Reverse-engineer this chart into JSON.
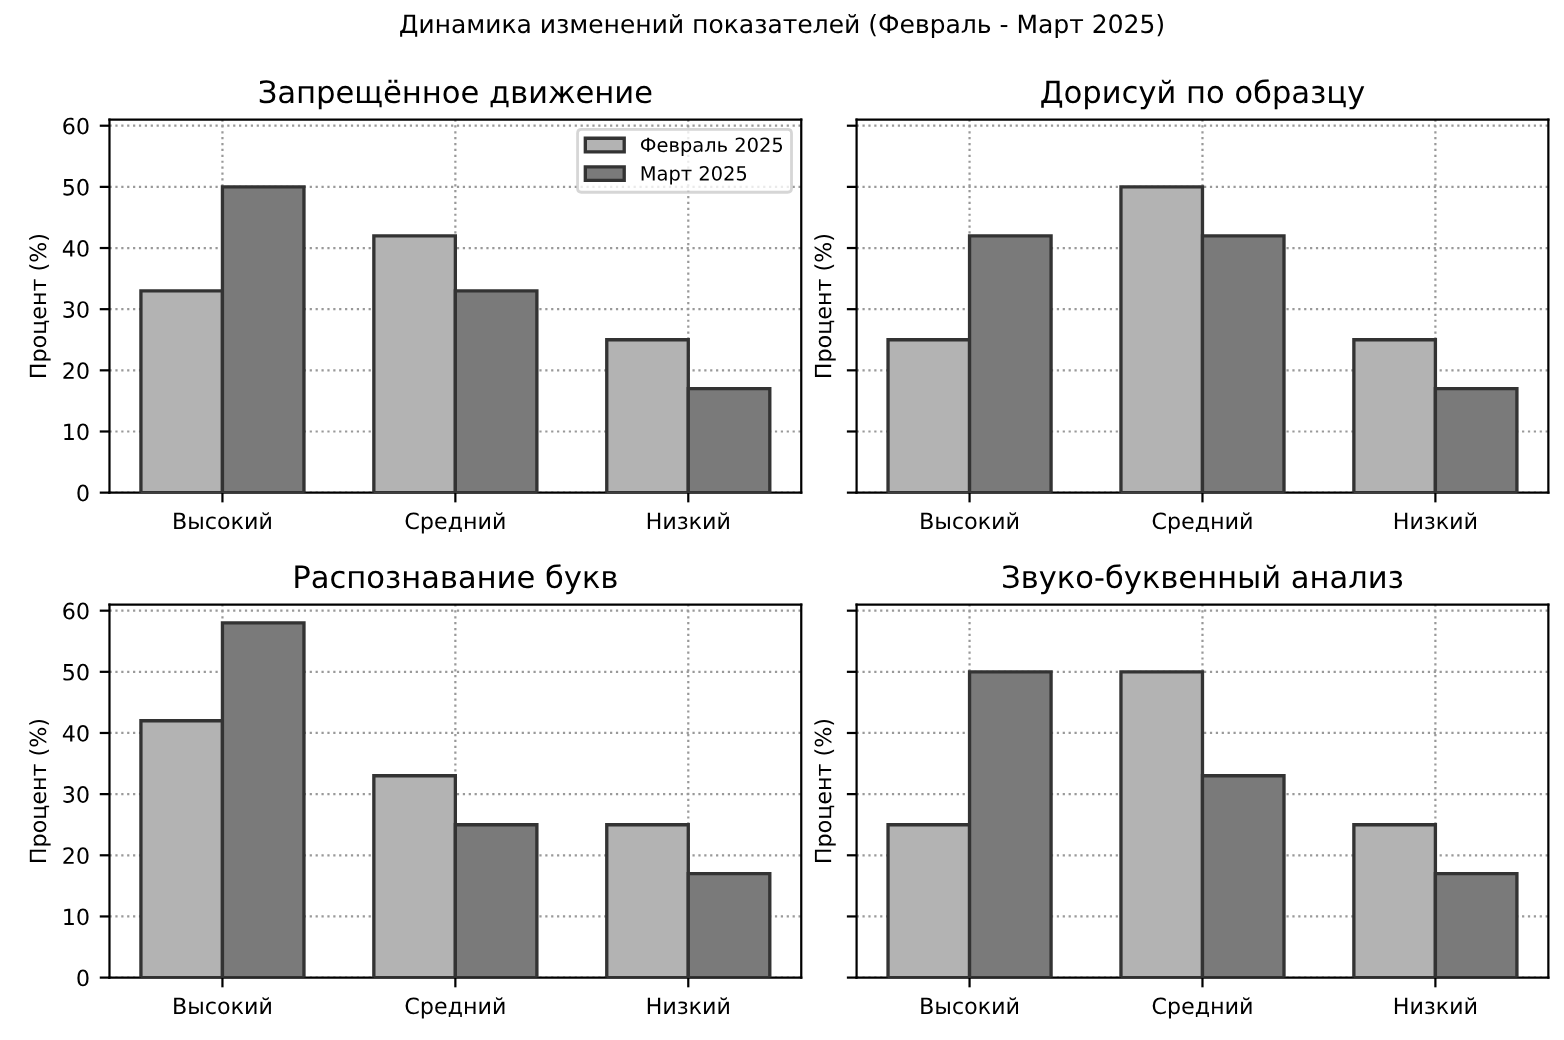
{
  "chart_data": [
    {
      "type": "bar",
      "title": "Запрещённое движение",
      "ylabel": "Процент (%)",
      "annotations": [
        "Динамика изменений показателей (Февраль - Март 2025)"
      ],
      "categories": [
        "Высокий",
        "Средний",
        "Низкий"
      ],
      "series": [
        {
          "name": "Февраль 2025",
          "color": "#b3b3b3",
          "values": [
            33,
            42,
            25
          ]
        },
        {
          "name": "Март 2025",
          "color": "#7a7a7a",
          "values": [
            50,
            33,
            17
          ]
        }
      ],
      "ylim": [
        0,
        61
      ],
      "yticks": [
        0,
        10,
        20,
        30,
        40,
        50,
        60
      ],
      "grid": true,
      "legend": "top right"
    },
    {
      "type": "bar",
      "title": "Дорисуй по образцу",
      "ylabel": "Процент (%)",
      "categories": [
        "Высокий",
        "Средний",
        "Низкий"
      ],
      "series": [
        {
          "color": "#b3b3b3",
          "values": [
            25,
            50,
            25
          ]
        },
        {
          "color": "#7a7a7a",
          "values": [
            42,
            42,
            17
          ]
        }
      ],
      "ylim": [
        0,
        61
      ],
      "yticks": [
        0,
        10,
        20,
        30,
        40,
        50,
        60
      ],
      "grid": true,
      "tick_labels": "x"
    },
    {
      "type": "bar",
      "title": "Распознавание букв",
      "ylabel": "Процент (%)",
      "categories": [
        "Высокий",
        "Средний",
        "Низкий"
      ],
      "series": [
        {
          "color": "#b3b3b3",
          "values": [
            42,
            33,
            25
          ]
        },
        {
          "color": "#7a7a7a",
          "values": [
            58,
            25,
            17
          ]
        }
      ],
      "ylim": [
        0,
        61
      ],
      "yticks": [
        0,
        10,
        20,
        30,
        40,
        50,
        60
      ],
      "grid": true
    },
    {
      "type": "bar",
      "title": "Звуко-буквенный анализ",
      "ylabel": "Процент (%)",
      "categories": [
        "Высокий",
        "Средний",
        "Низкий"
      ],
      "series": [
        {
          "color": "#b3b3b3",
          "values": [
            25,
            50,
            25
          ]
        },
        {
          "color": "#7a7a7a",
          "values": [
            50,
            33,
            17
          ]
        }
      ],
      "ylim": [
        0,
        61
      ],
      "yticks": [
        0,
        10,
        20,
        30,
        40,
        50,
        60
      ],
      "grid": true,
      "tick_labels": "x"
    }
  ]
}
